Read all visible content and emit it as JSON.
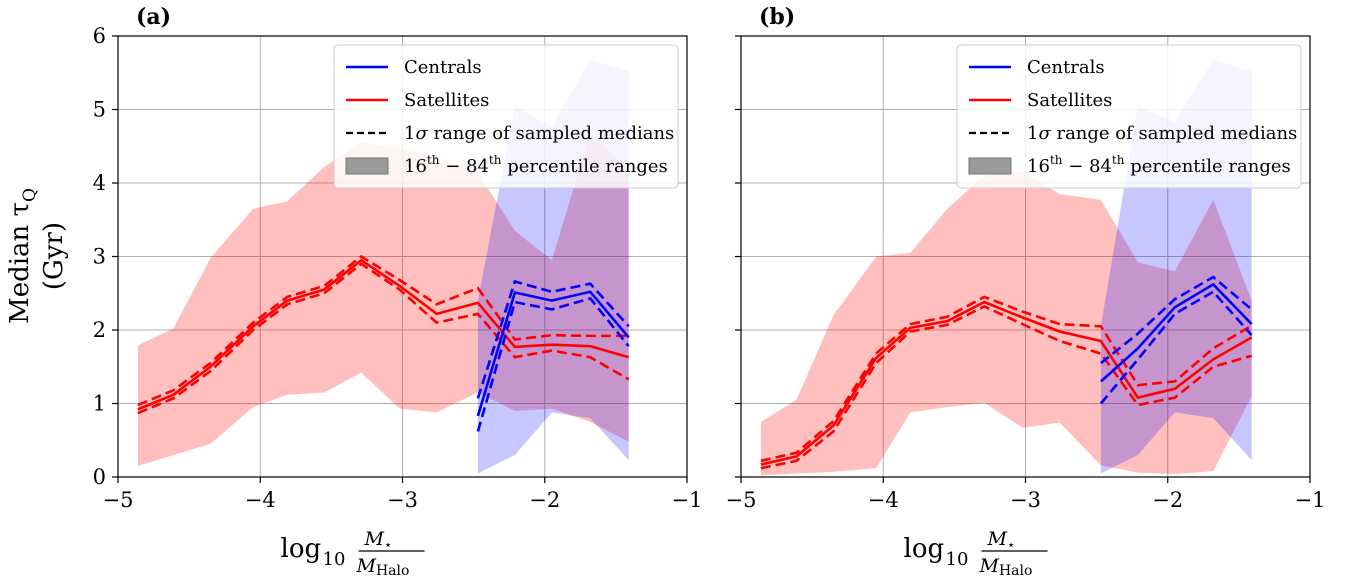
{
  "colors": {
    "centrals": "#0000ff",
    "satellites": "#ff0000",
    "central_band": "rgba(0,0,255,0.22)",
    "satellite_band": "rgba(255,0,0,0.25)",
    "legend_band_swatch": "#9a9a9a"
  },
  "y_label_line1": "Median τ",
  "y_label_sub": "Q",
  "y_label_line2": "(Gyr)",
  "x_label_log": "log",
  "x_label_base": "10",
  "x_label_num": "M",
  "x_label_num_sub": "⋆",
  "x_label_den": "M",
  "x_label_den_sub": "Halo",
  "legend": {
    "centrals": "Centrals",
    "satellites": "Satellites",
    "sampled_prefix": "1",
    "sampled_sigma": "σ",
    "sampled_suffix": " range of sampled medians",
    "pct_lo": "16",
    "pct_lo_sup": "th",
    "pct_dash": " − 84",
    "pct_hi_sup": "th",
    "pct_suffix": " percentile ranges"
  },
  "chart_data": [
    {
      "panel_label": "(a)",
      "type": "line",
      "xlim": [
        -5,
        -1
      ],
      "ylim": [
        0,
        6
      ],
      "xticks": [
        -5,
        -4,
        -3,
        -2,
        -1
      ],
      "xtick_labels": [
        "−5",
        "−4",
        "−3",
        "−2",
        "−1"
      ],
      "yticks": [
        0,
        1,
        2,
        3,
        4,
        5,
        6
      ],
      "ytick_labels": [
        "0",
        "1",
        "2",
        "3",
        "4",
        "5",
        "6"
      ],
      "grid": true,
      "legend_position": "upper right",
      "series": [
        {
          "name": "Satellites",
          "x": [
            -4.86,
            -4.61,
            -4.35,
            -4.05,
            -3.81,
            -3.55,
            -3.29,
            -3.02,
            -2.76,
            -2.47,
            -2.21,
            -1.95,
            -1.68,
            -1.41
          ],
          "median": [
            0.92,
            1.12,
            1.5,
            2.05,
            2.4,
            2.55,
            2.95,
            2.6,
            2.22,
            2.37,
            1.77,
            1.8,
            1.78,
            1.63
          ],
          "lo": [
            0.87,
            1.07,
            1.44,
            2.0,
            2.35,
            2.5,
            2.9,
            2.55,
            2.1,
            2.22,
            1.63,
            1.72,
            1.63,
            1.33
          ],
          "hi": [
            0.98,
            1.18,
            1.55,
            2.1,
            2.45,
            2.6,
            3.0,
            2.68,
            2.35,
            2.57,
            1.87,
            1.93,
            1.92,
            1.92
          ],
          "p16": [
            0.15,
            0.3,
            0.45,
            0.95,
            1.12,
            1.15,
            1.42,
            0.93,
            0.88,
            1.15,
            0.9,
            0.93,
            0.75,
            0.48
          ],
          "p84": [
            1.79,
            2.02,
            2.98,
            3.65,
            3.75,
            4.22,
            4.55,
            4.48,
            4.35,
            4.14,
            3.35,
            2.95,
            4.68,
            4.18
          ]
        },
        {
          "name": "Centrals",
          "x": [
            -2.47,
            -2.21,
            -1.95,
            -1.68,
            -1.41
          ],
          "median": [
            0.83,
            2.51,
            2.4,
            2.52,
            1.9
          ],
          "lo": [
            0.62,
            2.38,
            2.28,
            2.43,
            1.78
          ],
          "hi": [
            1.07,
            2.66,
            2.52,
            2.63,
            2.05
          ],
          "p16": [
            0.05,
            0.3,
            0.88,
            0.8,
            0.23
          ],
          "p84": [
            2.4,
            5.05,
            4.76,
            5.68,
            5.52
          ]
        }
      ]
    },
    {
      "panel_label": "(b)",
      "type": "line",
      "xlim": [
        -5,
        -1
      ],
      "ylim": [
        0,
        6
      ],
      "xticks": [
        -5,
        -4,
        -3,
        -2,
        -1
      ],
      "xtick_labels": [
        "−5",
        "−4",
        "−3",
        "−2",
        "−1"
      ],
      "yticks": [
        0,
        1,
        2,
        3,
        4,
        5,
        6
      ],
      "ytick_labels": [],
      "grid": true,
      "legend_position": "upper right",
      "series": [
        {
          "name": "Satellites",
          "x": [
            -4.86,
            -4.61,
            -4.35,
            -4.05,
            -3.81,
            -3.55,
            -3.29,
            -3.02,
            -2.76,
            -2.47,
            -2.21,
            -1.95,
            -1.68,
            -1.41
          ],
          "median": [
            0.17,
            0.28,
            0.7,
            1.62,
            2.03,
            2.12,
            2.38,
            2.17,
            1.98,
            1.85,
            1.08,
            1.2,
            1.6,
            1.9
          ],
          "lo": [
            0.12,
            0.22,
            0.62,
            1.55,
            1.98,
            2.07,
            2.32,
            2.08,
            1.85,
            1.68,
            0.98,
            1.08,
            1.5,
            1.65
          ],
          "hi": [
            0.22,
            0.33,
            0.76,
            1.68,
            2.08,
            2.18,
            2.45,
            2.25,
            2.08,
            2.05,
            1.25,
            1.3,
            1.75,
            2.06
          ],
          "p16": [
            0.02,
            0.05,
            0.07,
            0.12,
            0.88,
            0.95,
            1.01,
            0.67,
            0.74,
            0.16,
            0.06,
            0.04,
            0.08,
            1.1
          ],
          "p84": [
            0.75,
            1.05,
            2.2,
            3.0,
            3.05,
            3.65,
            4.1,
            4.15,
            3.85,
            3.77,
            2.92,
            2.8,
            3.77,
            2.4
          ]
        },
        {
          "name": "Centrals",
          "x": [
            -2.47,
            -2.21,
            -1.95,
            -1.68,
            -1.41
          ],
          "median": [
            1.3,
            1.75,
            2.31,
            2.62,
            2.08
          ],
          "lo": [
            1.0,
            1.6,
            2.22,
            2.52,
            1.93
          ],
          "hi": [
            1.55,
            1.95,
            2.42,
            2.72,
            2.28
          ],
          "p16": [
            0.05,
            0.3,
            0.88,
            0.8,
            0.23
          ],
          "p84": [
            2.05,
            5.05,
            4.83,
            5.68,
            5.52
          ]
        }
      ]
    }
  ]
}
